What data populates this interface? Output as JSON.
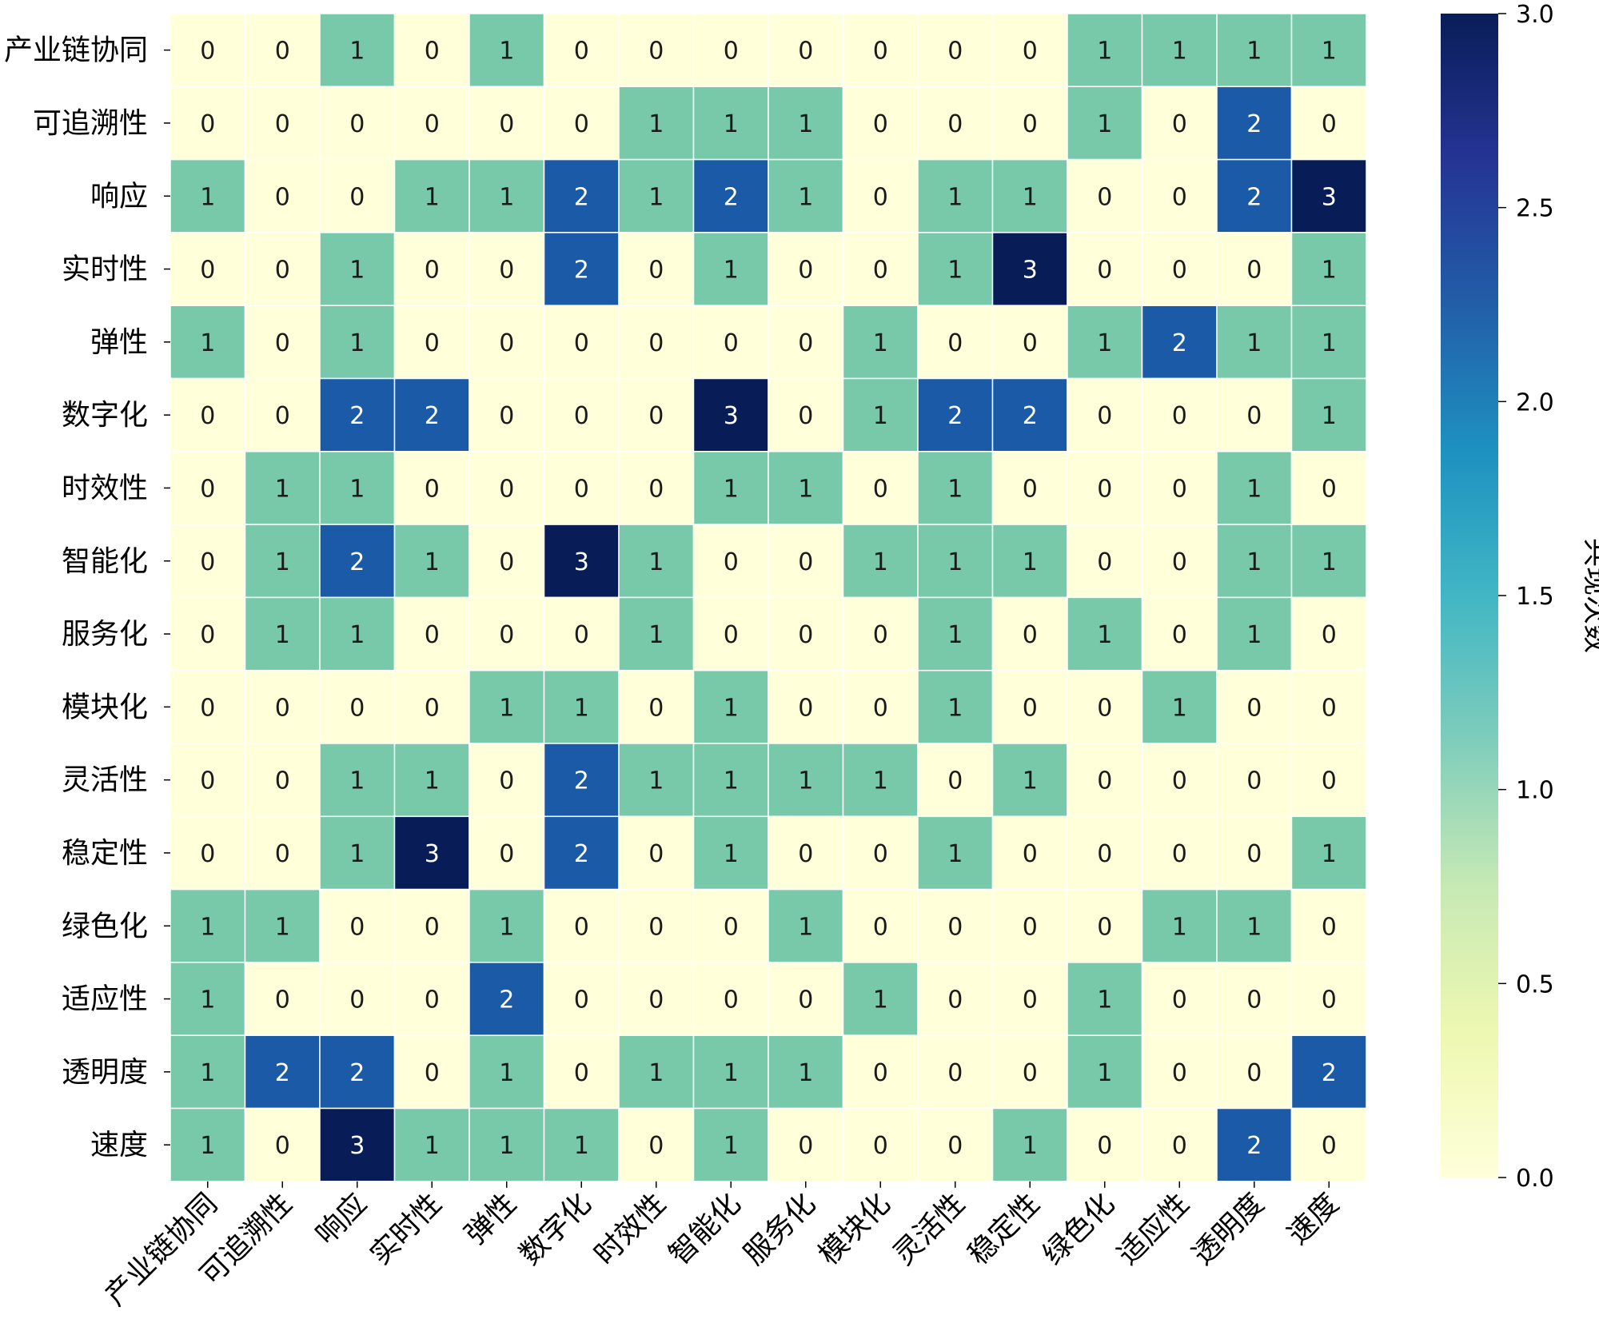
{
  "chart_data": {
    "type": "heatmap",
    "rows": [
      "产业链协同",
      "可追溯性",
      "响应",
      "实时性",
      "弹性",
      "数字化",
      "时效性",
      "智能化",
      "服务化",
      "模块化",
      "灵活性",
      "稳定性",
      "绿色化",
      "适应性",
      "透明度",
      "速度"
    ],
    "columns": [
      "产业链协同",
      "可追溯性",
      "响应",
      "实时性",
      "弹性",
      "数字化",
      "时效性",
      "智能化",
      "服务化",
      "模块化",
      "灵活性",
      "稳定性",
      "绿色化",
      "适应性",
      "透明度",
      "速度"
    ],
    "values": [
      [
        0,
        0,
        1,
        0,
        1,
        0,
        0,
        0,
        0,
        0,
        0,
        0,
        1,
        1,
        1,
        1
      ],
      [
        0,
        0,
        0,
        0,
        0,
        0,
        1,
        1,
        1,
        0,
        0,
        0,
        1,
        0,
        2,
        0
      ],
      [
        1,
        0,
        0,
        1,
        1,
        2,
        1,
        2,
        1,
        0,
        1,
        1,
        0,
        0,
        2,
        3
      ],
      [
        0,
        0,
        1,
        0,
        0,
        2,
        0,
        1,
        0,
        0,
        1,
        3,
        0,
        0,
        0,
        1
      ],
      [
        1,
        0,
        1,
        0,
        0,
        0,
        0,
        0,
        0,
        1,
        0,
        0,
        1,
        2,
        1,
        1
      ],
      [
        0,
        0,
        2,
        2,
        0,
        0,
        0,
        3,
        0,
        1,
        2,
        2,
        0,
        0,
        0,
        1
      ],
      [
        0,
        1,
        1,
        0,
        0,
        0,
        0,
        1,
        1,
        0,
        1,
        0,
        0,
        0,
        1,
        0
      ],
      [
        0,
        1,
        2,
        1,
        0,
        3,
        1,
        0,
        0,
        1,
        1,
        1,
        0,
        0,
        1,
        1
      ],
      [
        0,
        1,
        1,
        0,
        0,
        0,
        1,
        0,
        0,
        0,
        1,
        0,
        1,
        0,
        1,
        0
      ],
      [
        0,
        0,
        0,
        0,
        1,
        1,
        0,
        1,
        0,
        0,
        1,
        0,
        0,
        1,
        0,
        0
      ],
      [
        0,
        0,
        1,
        1,
        0,
        2,
        1,
        1,
        1,
        1,
        0,
        1,
        0,
        0,
        0,
        0
      ],
      [
        0,
        0,
        1,
        3,
        0,
        2,
        0,
        1,
        0,
        0,
        1,
        0,
        0,
        0,
        0,
        1
      ],
      [
        1,
        1,
        0,
        0,
        1,
        0,
        0,
        0,
        1,
        0,
        0,
        0,
        0,
        1,
        1,
        0
      ],
      [
        1,
        0,
        0,
        0,
        2,
        0,
        0,
        0,
        0,
        1,
        0,
        0,
        1,
        0,
        0,
        0
      ],
      [
        1,
        2,
        2,
        0,
        1,
        0,
        1,
        1,
        1,
        0,
        0,
        0,
        1,
        0,
        0,
        2
      ],
      [
        1,
        0,
        3,
        1,
        1,
        1,
        0,
        1,
        0,
        0,
        0,
        1,
        0,
        0,
        2,
        0
      ]
    ],
    "colormap": "YlGnBu",
    "colors": {
      "0": "#ffffd9",
      "1": "#78c8aa",
      "2": "#1b5aa6",
      "3": "#081d58",
      "grid_line": "#ffffff"
    },
    "vmin": 0,
    "vmax": 3,
    "colorbar": {
      "label": "共现次数",
      "ticks": [
        "0.0",
        "0.5",
        "1.0",
        "1.5",
        "2.0",
        "2.5",
        "3.0"
      ],
      "tick_values": [
        0,
        0.5,
        1.0,
        1.5,
        2.0,
        2.5,
        3.0
      ],
      "stops": [
        "#ffffd9",
        "#edf8b1",
        "#c7e9b4",
        "#7fcdbb",
        "#41b6c4",
        "#1d91c0",
        "#225ea8",
        "#253494",
        "#081d58"
      ]
    }
  }
}
